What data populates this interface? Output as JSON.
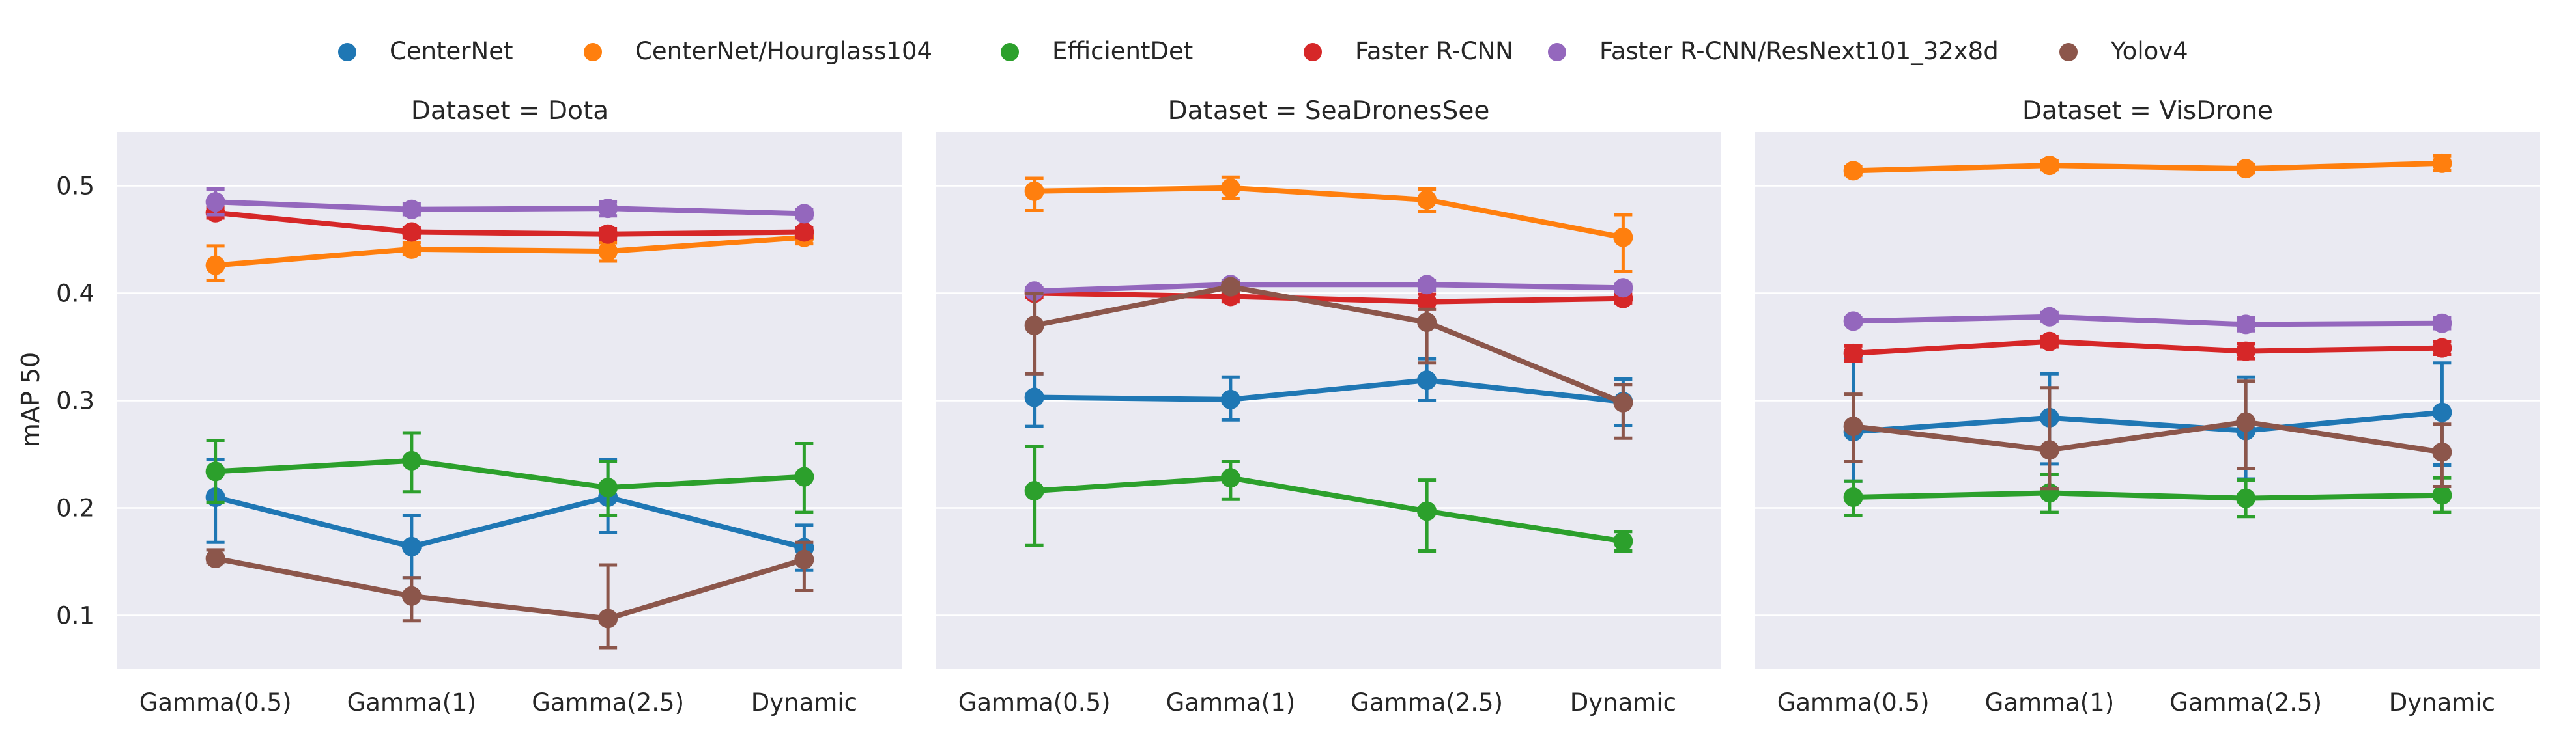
{
  "chart_data": {
    "type": "line",
    "ylabel": "mAP 50",
    "ylim": [
      0.05,
      0.55
    ],
    "yticks": [
      0.1,
      0.2,
      0.3,
      0.4,
      0.5
    ],
    "ytick_labels": [
      "0.1",
      "0.2",
      "0.3",
      "0.4",
      "0.5"
    ],
    "categories": [
      "Gamma(0.5)",
      "Gamma(1)",
      "Gamma(2.5)",
      "Dynamic"
    ],
    "grid": true,
    "legend_position": "top-center",
    "legend": [
      {
        "name": "CenterNet",
        "color": "#1f77b4"
      },
      {
        "name": "CenterNet/Hourglass104",
        "color": "#ff7f0e"
      },
      {
        "name": "EfficientDet",
        "color": "#2ca02c"
      },
      {
        "name": "Faster R-CNN",
        "color": "#d62728"
      },
      {
        "name": "Faster R-CNN/ResNext101_32x8d",
        "color": "#9467bd"
      },
      {
        "name": "Yolov4",
        "color": "#8c564b"
      }
    ],
    "panels": [
      {
        "title": "Dataset = Dota",
        "series": [
          {
            "name": "CenterNet",
            "values": [
              0.21,
              0.164,
              0.21,
              0.163
            ],
            "err_low": [
              0.168,
              0.135,
              0.177,
              0.142
            ],
            "err_high": [
              0.245,
              0.193,
              0.245,
              0.184
            ]
          },
          {
            "name": "CenterNet/Hourglass104",
            "values": [
              0.426,
              0.441,
              0.439,
              0.452
            ],
            "err_low": [
              0.412,
              0.436,
              0.43,
              0.446
            ],
            "err_high": [
              0.444,
              0.447,
              0.447,
              0.459
            ]
          },
          {
            "name": "EfficientDet",
            "values": [
              0.234,
              0.244,
              0.219,
              0.229
            ],
            "err_low": [
              0.205,
              0.215,
              0.193,
              0.196
            ],
            "err_high": [
              0.263,
              0.27,
              0.243,
              0.26
            ]
          },
          {
            "name": "Faster R-CNN",
            "values": [
              0.475,
              0.457,
              0.455,
              0.457
            ],
            "err_low": [
              0.47,
              0.452,
              0.45,
              0.452
            ],
            "err_high": [
              0.48,
              0.461,
              0.46,
              0.461
            ]
          },
          {
            "name": "Faster R-CNN/ResNext101_32x8d",
            "values": [
              0.485,
              0.478,
              0.479,
              0.474
            ],
            "err_low": [
              0.473,
              0.473,
              0.472,
              0.47
            ],
            "err_high": [
              0.497,
              0.483,
              0.485,
              0.478
            ]
          },
          {
            "name": "Yolov4",
            "values": [
              0.153,
              0.118,
              0.097,
              0.152
            ],
            "err_low": [
              0.149,
              0.095,
              0.07,
              0.123
            ],
            "err_high": [
              0.161,
              0.135,
              0.147,
              0.168
            ]
          }
        ]
      },
      {
        "title": "Dataset = SeaDronesSee",
        "series": [
          {
            "name": "CenterNet",
            "values": [
              0.303,
              0.301,
              0.319,
              0.299
            ],
            "err_low": [
              0.276,
              0.282,
              0.3,
              0.277
            ],
            "err_high": [
              0.325,
              0.322,
              0.339,
              0.32
            ]
          },
          {
            "name": "CenterNet/Hourglass104",
            "values": [
              0.495,
              0.498,
              0.487,
              0.452
            ],
            "err_low": [
              0.477,
              0.488,
              0.476,
              0.42
            ],
            "err_high": [
              0.507,
              0.508,
              0.497,
              0.473
            ]
          },
          {
            "name": "EfficientDet",
            "values": [
              0.216,
              0.228,
              0.197,
              0.169
            ],
            "err_low": [
              0.165,
              0.208,
              0.16,
              0.16
            ],
            "err_high": [
              0.257,
              0.243,
              0.226,
              0.178
            ]
          },
          {
            "name": "Faster R-CNN",
            "values": [
              0.4,
              0.397,
              0.392,
              0.395
            ],
            "err_low": [
              0.396,
              0.392,
              0.385,
              0.391
            ],
            "err_high": [
              0.404,
              0.402,
              0.399,
              0.399
            ]
          },
          {
            "name": "Faster R-CNN/ResNext101_32x8d",
            "values": [
              0.402,
              0.408,
              0.408,
              0.405
            ],
            "err_low": [
              0.399,
              0.403,
              0.403,
              0.402
            ],
            "err_high": [
              0.405,
              0.412,
              0.412,
              0.408
            ]
          },
          {
            "name": "Yolov4",
            "values": [
              0.37,
              0.406,
              0.373,
              0.298
            ],
            "err_low": [
              0.325,
              0.402,
              0.335,
              0.265
            ],
            "err_high": [
              0.4,
              0.41,
              0.385,
              0.315
            ]
          }
        ]
      },
      {
        "title": "Dataset = VisDrone",
        "series": [
          {
            "name": "CenterNet",
            "values": [
              0.271,
              0.284,
              0.272,
              0.289
            ],
            "err_low": [
              0.225,
              0.241,
              0.227,
              0.24
            ],
            "err_high": [
              0.34,
              0.325,
              0.322,
              0.335
            ]
          },
          {
            "name": "CenterNet/Hourglass104",
            "values": [
              0.514,
              0.519,
              0.516,
              0.521
            ],
            "err_low": [
              0.51,
              0.515,
              0.512,
              0.514
            ],
            "err_high": [
              0.518,
              0.523,
              0.52,
              0.528
            ]
          },
          {
            "name": "EfficientDet",
            "values": [
              0.21,
              0.214,
              0.209,
              0.212
            ],
            "err_low": [
              0.193,
              0.196,
              0.192,
              0.196
            ],
            "err_high": [
              0.225,
              0.231,
              0.226,
              0.228
            ]
          },
          {
            "name": "Faster R-CNN",
            "values": [
              0.344,
              0.355,
              0.346,
              0.349
            ],
            "err_low": [
              0.337,
              0.35,
              0.339,
              0.343
            ],
            "err_high": [
              0.351,
              0.36,
              0.353,
              0.355
            ]
          },
          {
            "name": "Faster R-CNN/ResNext101_32x8d",
            "values": [
              0.374,
              0.378,
              0.371,
              0.372
            ],
            "err_low": [
              0.371,
              0.374,
              0.365,
              0.367
            ],
            "err_high": [
              0.377,
              0.382,
              0.377,
              0.377
            ]
          },
          {
            "name": "Yolov4",
            "values": [
              0.276,
              0.254,
              0.28,
              0.252
            ],
            "err_low": [
              0.243,
              0.218,
              0.237,
              0.22
            ],
            "err_high": [
              0.306,
              0.312,
              0.318,
              0.278
            ]
          }
        ]
      }
    ]
  }
}
